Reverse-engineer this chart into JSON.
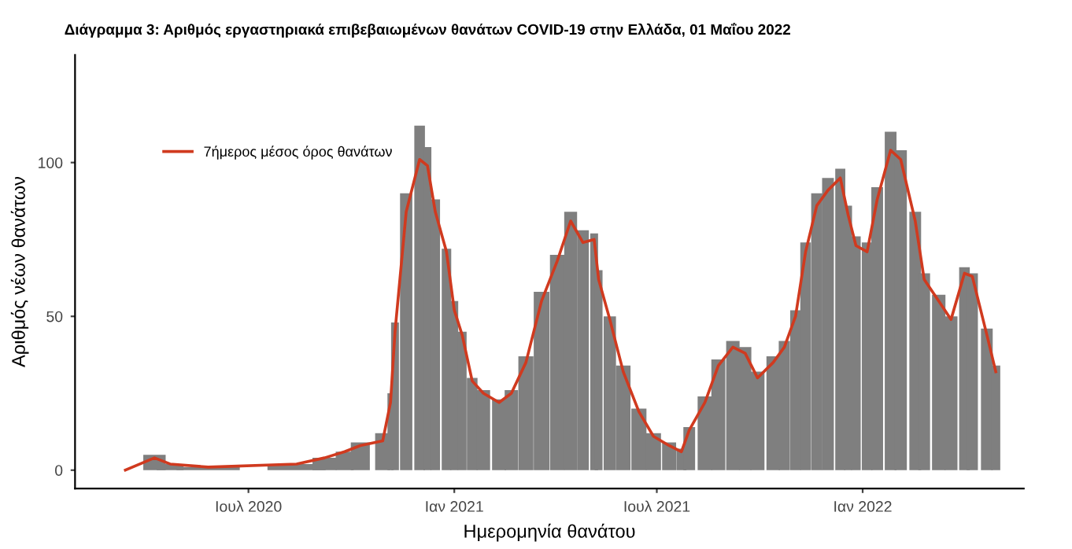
{
  "chart_data": {
    "type": "bar",
    "title": "Διάγραμμα 3: Αριθμός εργαστηριακά επιβεβαιωμένων θανάτων COVID-19 στην Ελλάδα, 01 Μαΐου 2022",
    "xlabel": "Ημερομηνία θανάτου",
    "ylabel": "Αριθμός νέων θανάτων",
    "x": [
      "2020-03-13",
      "2020-04-08",
      "2020-04-22",
      "2020-05-26",
      "2020-08-13",
      "2020-09-07",
      "2020-09-25",
      "2020-10-09",
      "2020-10-29",
      "2020-11-05",
      "2020-11-09",
      "2020-11-19",
      "2020-12-01",
      "2020-12-08",
      "2020-12-15",
      "2020-12-25",
      "2021-01-01",
      "2021-01-08",
      "2021-01-17",
      "2021-01-27",
      "2021-02-10",
      "2021-02-21",
      "2021-03-06",
      "2021-03-20",
      "2021-04-03",
      "2021-04-15",
      "2021-04-26",
      "2021-05-06",
      "2021-05-10",
      "2021-05-20",
      "2021-06-01",
      "2021-06-15",
      "2021-06-28",
      "2021-07-12",
      "2021-07-23",
      "2021-07-30",
      "2021-08-13",
      "2021-08-25",
      "2021-09-07",
      "2021-09-18",
      "2021-09-29",
      "2021-10-13",
      "2021-10-23",
      "2021-11-02",
      "2021-11-11",
      "2021-11-21",
      "2021-12-01",
      "2021-12-12",
      "2021-12-19",
      "2021-12-26",
      "2022-01-05",
      "2022-01-14",
      "2022-01-26",
      "2022-02-04",
      "2022-02-17",
      "2022-02-25",
      "2022-03-10",
      "2022-03-21",
      "2022-04-02",
      "2022-04-09",
      "2022-04-22",
      "2022-04-30"
    ],
    "series": [
      {
        "color": "#7f7f7f",
        "values": [
          0,
          5,
          2,
          1,
          2,
          4,
          6,
          9,
          12,
          25,
          48,
          90,
          112,
          105,
          88,
          72,
          55,
          45,
          30,
          26,
          23,
          26,
          37,
          58,
          70,
          84,
          78,
          77,
          65,
          50,
          34,
          20,
          12,
          9,
          7,
          14,
          24,
          36,
          42,
          40,
          32,
          37,
          42,
          52,
          74,
          90,
          95,
          98,
          86,
          76,
          74,
          92,
          110,
          104,
          84,
          64,
          57,
          50,
          66,
          64,
          46,
          34
        ]
      },
      {
        "type": "line",
        "name": "7ήμερος μέσος όρος θανάτων",
        "color": "#d03a1f",
        "values": [
          0,
          4,
          2,
          1,
          2,
          4,
          6,
          8,
          9.5,
          22,
          45,
          84,
          101,
          99,
          84,
          71,
          52,
          44,
          29,
          25,
          22,
          25,
          35,
          55,
          68,
          81,
          74,
          75,
          62,
          49,
          32,
          19,
          11,
          8,
          6,
          13,
          22,
          34,
          40,
          38,
          30,
          35,
          40,
          50,
          71,
          86,
          91,
          95,
          83,
          73,
          71,
          88,
          104,
          101,
          81,
          62,
          55,
          49,
          64,
          63,
          44,
          32
        ]
      }
    ],
    "xlim": [
      "2020-01-28",
      "2022-05-25"
    ],
    "xticks": [
      {
        "value": "2020-07-01",
        "label": "Ιουλ 2020"
      },
      {
        "value": "2021-01-01",
        "label": "Ιαν 2021"
      },
      {
        "value": "2021-07-01",
        "label": "Ιουλ 2021"
      },
      {
        "value": "2022-01-01",
        "label": "Ιαν 2022"
      }
    ],
    "ylim": [
      -6,
      135
    ],
    "yticks": [
      0,
      50,
      100
    ],
    "legend": "top left",
    "grid": false
  }
}
